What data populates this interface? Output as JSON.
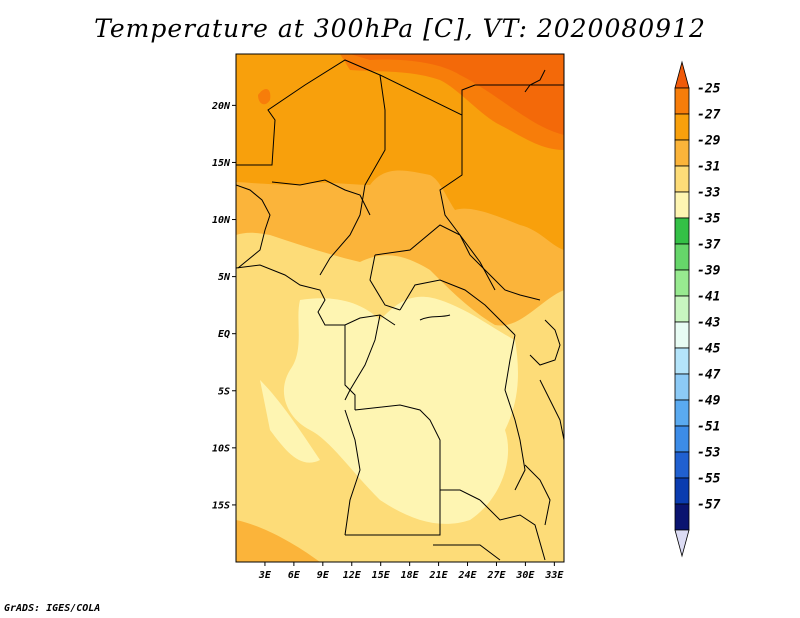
{
  "title": "Temperature at 300hPa [C], VT: 2020080912",
  "credit": "GrADS: IGES/COLA",
  "map": {
    "lon_range": [
      0,
      34
    ],
    "lat_range": [
      -20,
      24.5
    ],
    "lat_ticks": [
      {
        "value": 20,
        "label": "20N"
      },
      {
        "value": 15,
        "label": "15N"
      },
      {
        "value": 10,
        "label": "10N"
      },
      {
        "value": 5,
        "label": "5N"
      },
      {
        "value": 0,
        "label": "EQ"
      },
      {
        "value": -5,
        "label": "5S"
      },
      {
        "value": -10,
        "label": "10S"
      },
      {
        "value": -15,
        "label": "15S"
      }
    ],
    "lon_ticks": [
      {
        "value": 3,
        "label": "3E"
      },
      {
        "value": 6,
        "label": "6E"
      },
      {
        "value": 9,
        "label": "9E"
      },
      {
        "value": 12,
        "label": "12E"
      },
      {
        "value": 15,
        "label": "15E"
      },
      {
        "value": 18,
        "label": "18E"
      },
      {
        "value": 21,
        "label": "21E"
      },
      {
        "value": 24,
        "label": "24E"
      },
      {
        "value": 27,
        "label": "27E"
      },
      {
        "value": 30,
        "label": "30E"
      },
      {
        "value": 33,
        "label": "33E"
      }
    ]
  },
  "colorbar": {
    "labels": [
      "-25",
      "-27",
      "-29",
      "-31",
      "-33",
      "-35",
      "-37",
      "-39",
      "-41",
      "-43",
      "-45",
      "-47",
      "-49",
      "-51",
      "-53",
      "-55",
      "-57"
    ],
    "colors": [
      "#f05a0a",
      "#f77d0a",
      "#f8a00c",
      "#fbb43a",
      "#fddc78",
      "#fef5b2",
      "#34c046",
      "#66d66a",
      "#98ea90",
      "#c8f6c0",
      "#e8fcf4",
      "#b4e4fa",
      "#8ccaf6",
      "#5aaaf0",
      "#3c8ce8",
      "#2060d0",
      "#0a3cb0",
      "#0a1470",
      "#dcdcf4"
    ]
  }
}
